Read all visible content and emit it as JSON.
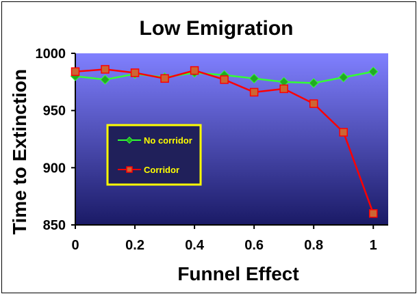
{
  "chart_data": {
    "type": "line",
    "title": "Low Emigration",
    "xlabel": "Funnel Effect",
    "ylabel": "Time to Extinction",
    "x": [
      0,
      0.1,
      0.2,
      0.3,
      0.4,
      0.5,
      0.6,
      0.7,
      0.8,
      0.9,
      1
    ],
    "xlim": [
      0,
      1.05
    ],
    "ylim": [
      850,
      1000
    ],
    "x_ticks": [
      0,
      0.2,
      0.4,
      0.6,
      0.8,
      1
    ],
    "x_tick_labels": [
      "0",
      "0.2",
      "0.4",
      "0.6",
      "0.8",
      "1"
    ],
    "y_ticks": [
      850,
      900,
      950,
      1000
    ],
    "y_tick_labels": [
      "850",
      "900",
      "950",
      "1000"
    ],
    "legend_placement": "center-left",
    "grid": false,
    "series": [
      {
        "name": "No corridor",
        "values": [
          980,
          977,
          982,
          979,
          983,
          981,
          978,
          975,
          974,
          979,
          984
        ],
        "line_color": "#33ff33",
        "marker": "diamond",
        "marker_color": "#22aa22"
      },
      {
        "name": "Corridor",
        "values": [
          984,
          986,
          983,
          978,
          985,
          977,
          966,
          969,
          956,
          931,
          860
        ],
        "line_color": "#ff0000",
        "marker": "square",
        "marker_color": "#cc6633"
      }
    ],
    "colors": {
      "plot_bg_top": "#8080ff",
      "plot_bg_bottom": "#1a1a66",
      "legend_bg": "#20205a",
      "legend_border": "#ffff00",
      "legend_text": "#ffff00"
    }
  }
}
